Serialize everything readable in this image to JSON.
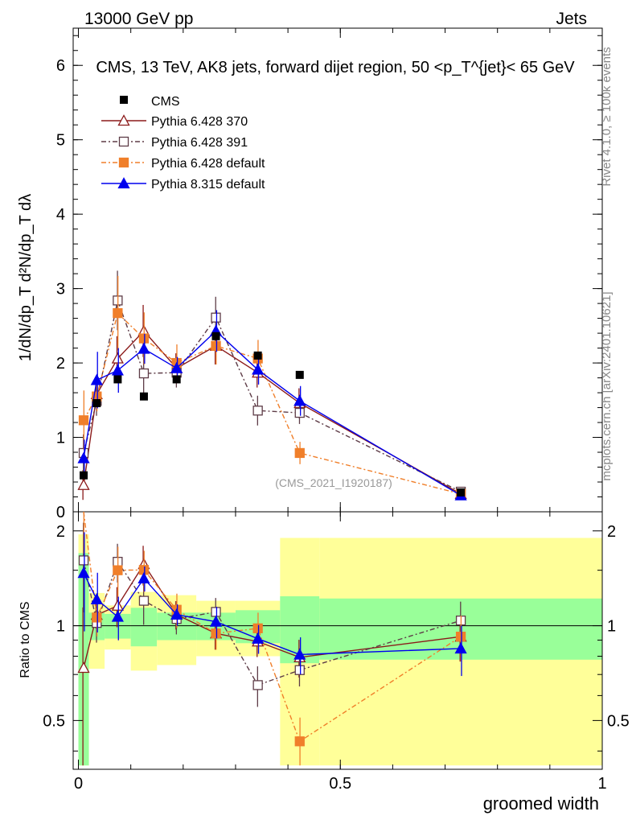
{
  "header": {
    "left": "13000 GeV pp",
    "right": "Jets"
  },
  "side_labels": {
    "rivet": "Rivet 4.1.0, ≥ 100k events",
    "mcplots": "mcplots.cern.ch [arXiv:2401.10621]"
  },
  "chart_data": {
    "type": "line",
    "title": "CMS, 13 TeV, AK8 jets, forward dijet region, 50 <p_T^{jet}< 65 GeV",
    "analysis_tag": "(CMS_2021_I1920187)",
    "xlabel": "groomed width",
    "ylabel": "1/dN/dp_T  d²N/dp_T dλ",
    "ylabel_ratio": "Ratio to CMS",
    "xlim": [
      -0.01,
      1.0
    ],
    "ylim_main": [
      0,
      6.5
    ],
    "ylim_ratio": [
      0.35,
      2.3
    ],
    "x_ticks": [
      "0",
      "0.5",
      "1"
    ],
    "y_ticks_main": [
      "0",
      "1",
      "2",
      "3",
      "4",
      "5",
      "6"
    ],
    "y_ticks_ratio": [
      "0.5",
      "1",
      "2"
    ],
    "bin_edges": [
      0,
      0.02,
      0.05,
      0.1,
      0.15,
      0.225,
      0.3,
      0.385,
      0.46,
      1.0
    ],
    "x": [
      0.01,
      0.035,
      0.075,
      0.125,
      0.1875,
      0.2625,
      0.3425,
      0.4225,
      0.73
    ],
    "cms": {
      "name": "CMS",
      "values": [
        0.49,
        1.46,
        1.78,
        1.55,
        1.78,
        2.36,
        2.1,
        1.84,
        0.26
      ],
      "unc_inner": [
        0.7,
        0.1,
        0.09,
        0.14,
        0.1,
        0.1,
        0.12,
        0.24,
        0.22
      ],
      "unc_outer": [
        0.95,
        0.27,
        0.16,
        0.28,
        0.25,
        0.2,
        0.2,
        0.9,
        0.9
      ]
    },
    "series": [
      {
        "name": "Pythia 6.428 370",
        "color": "#8b1a1a",
        "marker": "open-triangle",
        "dash": "",
        "values": [
          0.36,
          1.58,
          2.06,
          2.43,
          1.93,
          2.23,
          1.87,
          1.46,
          0.24
        ],
        "errors": [
          0.2,
          0.15,
          0.3,
          0.35,
          0.2,
          0.25,
          0.2,
          0.2,
          0.04
        ]
      },
      {
        "name": "Pythia 6.428 391",
        "color": "#5e3c47",
        "marker": "open-square",
        "dash": "6,3,2,3",
        "values": [
          0.79,
          1.49,
          2.84,
          1.86,
          1.87,
          2.61,
          1.36,
          1.33,
          0.27
        ],
        "errors": [
          0.25,
          0.2,
          0.4,
          0.3,
          0.2,
          0.28,
          0.2,
          0.15,
          0.04
        ]
      },
      {
        "name": "Pythia 6.428 default",
        "color": "#f07f2a",
        "marker": "filled-square",
        "dash": "6,3,2,3",
        "values": [
          1.23,
          1.55,
          2.67,
          2.33,
          2.0,
          2.23,
          2.06,
          0.79,
          0.24
        ],
        "errors": [
          0.4,
          0.2,
          0.5,
          0.35,
          0.25,
          0.25,
          0.25,
          0.15,
          0.04
        ]
      },
      {
        "name": "Pythia 8.315 default",
        "color": "#0000ee",
        "marker": "filled-triangle",
        "dash": "",
        "values": [
          0.72,
          1.77,
          1.9,
          2.19,
          1.93,
          2.43,
          1.91,
          1.49,
          0.22
        ],
        "errors": [
          0.25,
          0.38,
          0.3,
          0.2,
          0.15,
          0.28,
          0.2,
          0.2,
          0.04
        ]
      }
    ]
  }
}
